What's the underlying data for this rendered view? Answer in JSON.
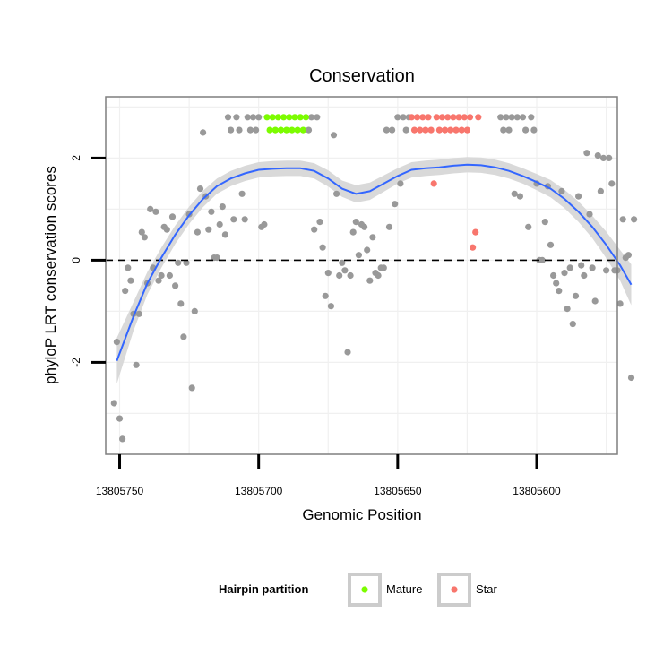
{
  "chart_data": {
    "type": "scatter",
    "title": "Conservation",
    "xlabel": "Genomic Position",
    "ylabel": "phyloP LRT conservation scores",
    "x_reversed": true,
    "xlim": [
      13805755,
      13805571
    ],
    "ylim": [
      -3.8,
      3.2
    ],
    "x_ticks": [
      13805750,
      13805700,
      13805650,
      13805600
    ],
    "x_tick_labels": [
      "13805750",
      "13805700",
      "13805650",
      "13805600"
    ],
    "y_ticks": [
      -2,
      0,
      2
    ],
    "y_tick_labels": [
      "-2",
      "0",
      "2"
    ],
    "reference_line": {
      "y": 0,
      "style": "dashed"
    },
    "legend": {
      "title": "Hairpin partition",
      "position": "bottom",
      "entries": [
        {
          "label": "Mature",
          "color": "#7CFC00"
        },
        {
          "label": "Star",
          "color": "#F8766D"
        }
      ]
    },
    "colors": {
      "other": "#999999",
      "Mature": "#7CFC00",
      "Star": "#F8766D",
      "smooth": "#3366FF",
      "ribbon": "#D9D9D9"
    },
    "series": [
      {
        "name": "Other",
        "points": [
          [
            13805752,
            -2.8
          ],
          [
            13805751,
            -1.6
          ],
          [
            13805750,
            -3.1
          ],
          [
            13805749,
            -3.5
          ],
          [
            13805748,
            -0.6
          ],
          [
            13805747,
            -0.15
          ],
          [
            13805746,
            -0.4
          ],
          [
            13805745,
            -1.05
          ],
          [
            13805744,
            -2.05
          ],
          [
            13805743,
            -1.05
          ],
          [
            13805742,
            0.55
          ],
          [
            13805741,
            0.45
          ],
          [
            13805740,
            -0.45
          ],
          [
            13805739,
            1.0
          ],
          [
            13805738,
            -0.15
          ],
          [
            13805737,
            0.95
          ],
          [
            13805736,
            -0.4
          ],
          [
            13805735,
            -0.3
          ],
          [
            13805734,
            0.65
          ],
          [
            13805733,
            0.6
          ],
          [
            13805732,
            -0.3
          ],
          [
            13805731,
            0.85
          ],
          [
            13805730,
            -0.5
          ],
          [
            13805729,
            -0.05
          ],
          [
            13805728,
            -0.85
          ],
          [
            13805727,
            -1.5
          ],
          [
            13805726,
            -0.05
          ],
          [
            13805725,
            0.9
          ],
          [
            13805724,
            -2.5
          ],
          [
            13805723,
            -1.0
          ],
          [
            13805722,
            0.55
          ],
          [
            13805721,
            1.4
          ],
          [
            13805720,
            2.5
          ],
          [
            13805719,
            1.25
          ],
          [
            13805718,
            0.6
          ],
          [
            13805717,
            0.95
          ],
          [
            13805716,
            0.05
          ],
          [
            13805715,
            0.05
          ],
          [
            13805714,
            0.7
          ],
          [
            13805713,
            1.05
          ],
          [
            13805712,
            0.5
          ],
          [
            13805711,
            2.8
          ],
          [
            13805710,
            2.55
          ],
          [
            13805709,
            0.8
          ],
          [
            13805708,
            2.8
          ],
          [
            13805707,
            2.55
          ],
          [
            13805706,
            1.3
          ],
          [
            13805705,
            0.8
          ],
          [
            13805704,
            2.8
          ],
          [
            13805703,
            2.55
          ],
          [
            13805702,
            2.8
          ],
          [
            13805701,
            2.55
          ],
          [
            13805700,
            2.8
          ],
          [
            13805699,
            0.65
          ],
          [
            13805698,
            0.7
          ],
          [
            13805682,
            2.55
          ],
          [
            13805681,
            2.8
          ],
          [
            13805680,
            0.6
          ],
          [
            13805679,
            2.8
          ],
          [
            13805678,
            0.75
          ],
          [
            13805677,
            0.25
          ],
          [
            13805676,
            -0.7
          ],
          [
            13805675,
            -0.25
          ],
          [
            13805674,
            -0.9
          ],
          [
            13805673,
            2.45
          ],
          [
            13805672,
            1.3
          ],
          [
            13805671,
            -0.3
          ],
          [
            13805670,
            -0.05
          ],
          [
            13805669,
            -0.2
          ],
          [
            13805668,
            -1.8
          ],
          [
            13805667,
            -0.3
          ],
          [
            13805666,
            0.55
          ],
          [
            13805665,
            0.75
          ],
          [
            13805664,
            0.1
          ],
          [
            13805663,
            0.7
          ],
          [
            13805662,
            0.65
          ],
          [
            13805661,
            0.2
          ],
          [
            13805660,
            -0.4
          ],
          [
            13805659,
            0.45
          ],
          [
            13805658,
            -0.25
          ],
          [
            13805657,
            -0.3
          ],
          [
            13805656,
            -0.15
          ],
          [
            13805655,
            -0.15
          ],
          [
            13805654,
            2.55
          ],
          [
            13805653,
            0.65
          ],
          [
            13805652,
            2.55
          ],
          [
            13805651,
            1.1
          ],
          [
            13805650,
            2.8
          ],
          [
            13805649,
            1.5
          ],
          [
            13805648,
            2.8
          ],
          [
            13805647,
            2.55
          ],
          [
            13805646,
            2.8
          ],
          [
            13805613,
            2.8
          ],
          [
            13805612,
            2.55
          ],
          [
            13805611,
            2.8
          ],
          [
            13805610,
            2.55
          ],
          [
            13805609,
            2.8
          ],
          [
            13805608,
            1.3
          ],
          [
            13805607,
            2.8
          ],
          [
            13805606,
            1.25
          ],
          [
            13805605,
            2.8
          ],
          [
            13805604,
            2.55
          ],
          [
            13805603,
            0.65
          ],
          [
            13805602,
            2.8
          ],
          [
            13805601,
            2.55
          ],
          [
            13805600,
            1.5
          ],
          [
            13805599,
            0.0
          ],
          [
            13805598,
            0.0
          ],
          [
            13805597,
            0.75
          ],
          [
            13805596,
            1.45
          ],
          [
            13805595,
            0.3
          ],
          [
            13805594,
            -0.3
          ],
          [
            13805593,
            -0.45
          ],
          [
            13805592,
            -0.6
          ],
          [
            13805591,
            1.35
          ],
          [
            13805590,
            -0.25
          ],
          [
            13805589,
            -0.95
          ],
          [
            13805588,
            -0.15
          ],
          [
            13805587,
            -1.25
          ],
          [
            13805586,
            -0.7
          ],
          [
            13805585,
            1.25
          ],
          [
            13805584,
            -0.1
          ],
          [
            13805583,
            -0.3
          ],
          [
            13805582,
            2.1
          ],
          [
            13805581,
            0.9
          ],
          [
            13805580,
            -0.15
          ],
          [
            13805579,
            -0.8
          ],
          [
            13805578,
            2.05
          ],
          [
            13805577,
            1.35
          ],
          [
            13805576,
            2.0
          ],
          [
            13805575,
            -0.2
          ],
          [
            13805574,
            2.0
          ],
          [
            13805573,
            1.5
          ],
          [
            13805572,
            -0.2
          ],
          [
            13805571,
            -0.2
          ],
          [
            13805570,
            -0.85
          ],
          [
            13805569,
            0.8
          ],
          [
            13805568,
            0.05
          ],
          [
            13805567,
            0.1
          ],
          [
            13805566,
            -2.3
          ],
          [
            13805565,
            0.8
          ]
        ]
      },
      {
        "name": "Mature",
        "points": [
          [
            13805697,
            2.8
          ],
          [
            13805696,
            2.55
          ],
          [
            13805695,
            2.8
          ],
          [
            13805694,
            2.55
          ],
          [
            13805693,
            2.8
          ],
          [
            13805692,
            2.55
          ],
          [
            13805691,
            2.8
          ],
          [
            13805690,
            2.55
          ],
          [
            13805689,
            2.8
          ],
          [
            13805688,
            2.55
          ],
          [
            13805687,
            2.8
          ],
          [
            13805686,
            2.55
          ],
          [
            13805685,
            2.8
          ],
          [
            13805684,
            2.55
          ],
          [
            13805683,
            2.8
          ]
        ]
      },
      {
        "name": "Star",
        "points": [
          [
            13805645,
            2.8
          ],
          [
            13805644,
            2.55
          ],
          [
            13805643,
            2.8
          ],
          [
            13805642,
            2.55
          ],
          [
            13805641,
            2.8
          ],
          [
            13805640,
            2.55
          ],
          [
            13805639,
            2.8
          ],
          [
            13805638,
            2.55
          ],
          [
            13805637,
            1.5
          ],
          [
            13805636,
            2.8
          ],
          [
            13805635,
            2.55
          ],
          [
            13805634,
            2.8
          ],
          [
            13805633,
            2.55
          ],
          [
            13805632,
            2.8
          ],
          [
            13805631,
            2.55
          ],
          [
            13805630,
            2.8
          ],
          [
            13805629,
            2.55
          ],
          [
            13805628,
            2.8
          ],
          [
            13805627,
            2.55
          ],
          [
            13805626,
            2.8
          ],
          [
            13805625,
            2.55
          ],
          [
            13805624,
            2.8
          ],
          [
            13805623,
            0.25
          ],
          [
            13805622,
            0.55
          ],
          [
            13805621,
            2.8
          ]
        ]
      }
    ],
    "smooth_line": {
      "x": [
        13805751,
        13805745,
        13805740,
        13805735,
        13805730,
        13805725,
        13805720,
        13805715,
        13805710,
        13805705,
        13805700,
        13805695,
        13805690,
        13805685,
        13805680,
        13805675,
        13805670,
        13805665,
        13805660,
        13805655,
        13805650,
        13805645,
        13805640,
        13805635,
        13805630,
        13805625,
        13805620,
        13805615,
        13805610,
        13805605,
        13805600,
        13805595,
        13805590,
        13805585,
        13805580,
        13805575,
        13805570,
        13805566
      ],
      "y": [
        -1.97,
        -1.1,
        -0.45,
        0.05,
        0.5,
        0.88,
        1.2,
        1.45,
        1.6,
        1.7,
        1.77,
        1.79,
        1.8,
        1.8,
        1.75,
        1.6,
        1.4,
        1.3,
        1.35,
        1.5,
        1.65,
        1.77,
        1.8,
        1.82,
        1.85,
        1.87,
        1.86,
        1.82,
        1.75,
        1.65,
        1.53,
        1.4,
        1.2,
        0.95,
        0.65,
        0.3,
        -0.1,
        -0.48
      ],
      "band": [
        0.45,
        0.28,
        0.22,
        0.2,
        0.18,
        0.17,
        0.16,
        0.15,
        0.15,
        0.15,
        0.15,
        0.15,
        0.15,
        0.15,
        0.15,
        0.16,
        0.16,
        0.17,
        0.17,
        0.16,
        0.15,
        0.15,
        0.15,
        0.15,
        0.15,
        0.15,
        0.15,
        0.15,
        0.15,
        0.15,
        0.16,
        0.17,
        0.18,
        0.2,
        0.22,
        0.26,
        0.3,
        0.4
      ]
    }
  }
}
